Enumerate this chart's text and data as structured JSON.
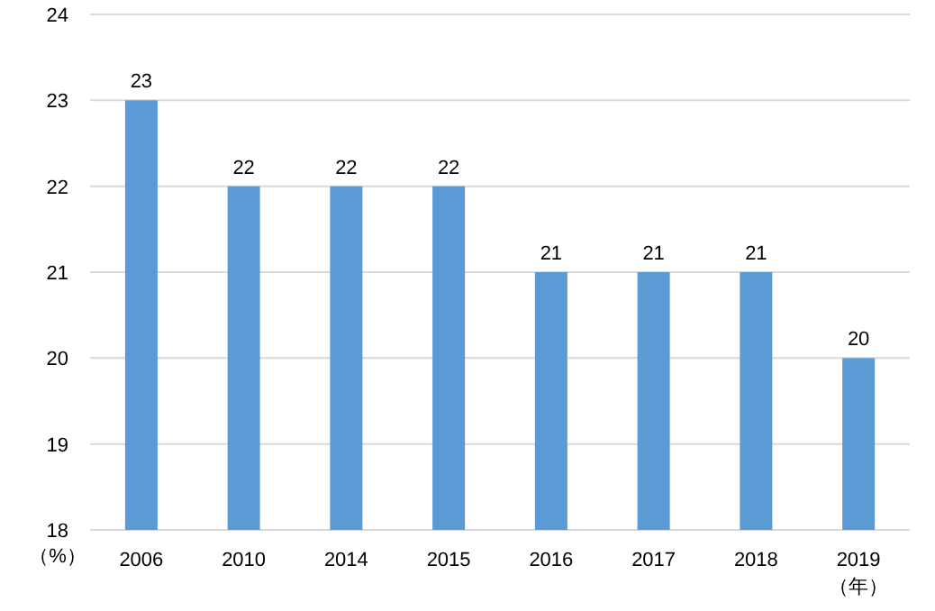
{
  "chart_data": {
    "type": "bar",
    "categories": [
      "2006",
      "2010",
      "2014",
      "2015",
      "2016",
      "2017",
      "2018",
      "2019"
    ],
    "values": [
      23,
      22,
      22,
      22,
      21,
      21,
      21,
      20
    ],
    "color": "#5b9bd5",
    "ylim": [
      18,
      24
    ],
    "yticks": [
      18,
      19,
      20,
      21,
      22,
      23,
      24
    ],
    "grid": "y",
    "data_labels": true,
    "ylabel": "（%）",
    "xlabel": "（年）"
  }
}
